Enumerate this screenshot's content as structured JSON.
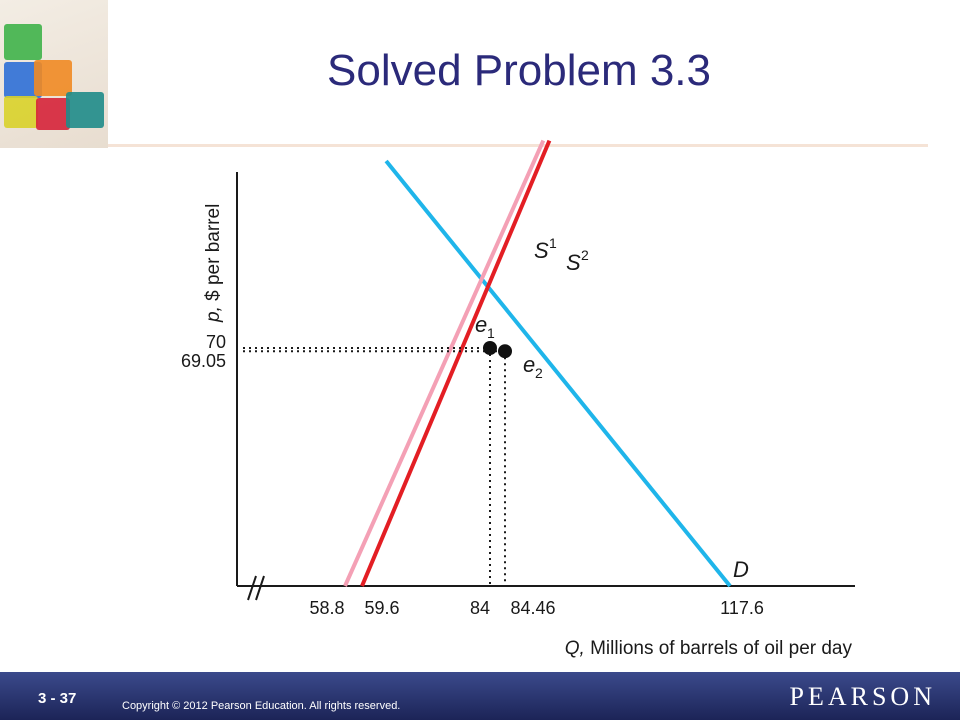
{
  "slide": {
    "title": "Solved Problem 3.3"
  },
  "footer": {
    "slide_number": "3 - 37",
    "copyright": "Copyright © 2012  Pearson Education. All rights reserved.",
    "brand": "PEARSON"
  },
  "colors": {
    "title": "#2b2a7a",
    "demand": "#1fb5ea",
    "supply1": "#f4a0b5",
    "supply2": "#e31e24",
    "axis": "#1a1a1a",
    "footer": "#26306a"
  },
  "chart_data": {
    "type": "line",
    "xlabel_var": "Q,",
    "xlabel_text": "Millions of barrels of oil per day",
    "ylabel_var": "p,",
    "ylabel_text": "$ per barrel",
    "x_ticks": [
      "58.8",
      "59.6",
      "84",
      "84.46",
      "117.6"
    ],
    "y_ticks": [
      "70",
      "69.05"
    ],
    "axis_break": true,
    "grid": false,
    "series": [
      {
        "name": "D",
        "points": [
          [
            64.2,
            125.0
          ],
          [
            117.6,
            0
          ]
        ]
      },
      {
        "name": "S",
        "superscript": "1",
        "points": [
          [
            58.8,
            0
          ],
          [
            90.1,
            131.0
          ]
        ]
      },
      {
        "name": "S",
        "superscript": "2",
        "points": [
          [
            59.6,
            0
          ],
          [
            91.0,
            131.0
          ]
        ]
      }
    ],
    "equilibria": [
      {
        "name": "e",
        "subscript": "1",
        "x": 84,
        "y": 70
      },
      {
        "name": "e",
        "subscript": "2",
        "x": 84.46,
        "y": 69.05
      }
    ]
  }
}
